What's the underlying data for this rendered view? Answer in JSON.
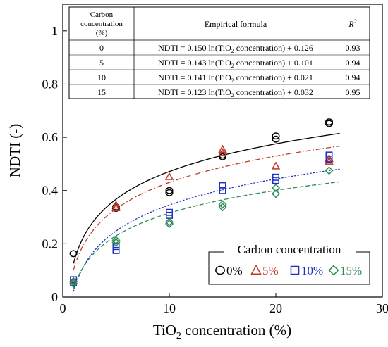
{
  "chart_data": {
    "type": "scatter",
    "xlabel": "TiO2 concentration (%)",
    "xlabel_main": "TiO",
    "xlabel_sub": "2",
    "xlabel_rest": " concentration (%)",
    "ylabel": "NDTI (-)",
    "xlim": [
      0,
      30
    ],
    "ylim": [
      0,
      1.1
    ],
    "x_ticks": [
      0,
      10,
      20,
      30
    ],
    "y_ticks": [
      0,
      0.2,
      0.4,
      0.6,
      0.8,
      1
    ],
    "y_tick_labels": [
      "0",
      "0.2",
      "0.4",
      "0.6",
      "0.8",
      "1"
    ],
    "legend": {
      "title": "Carbon concentration",
      "placement": "bottom-right",
      "entries": [
        "0%",
        "5%",
        "10%",
        "15%"
      ]
    },
    "series": [
      {
        "name": "0%",
        "marker": "circle",
        "color": "#000000",
        "line_style": "solid",
        "fit": {
          "a": 0.15,
          "b": 0.126
        },
        "points": [
          {
            "x": 1,
            "y": 0.163
          },
          {
            "x": 5,
            "y": 0.333
          },
          {
            "x": 5,
            "y": 0.338
          },
          {
            "x": 10,
            "y": 0.392
          },
          {
            "x": 10,
            "y": 0.4
          },
          {
            "x": 15,
            "y": 0.527
          },
          {
            "x": 15,
            "y": 0.533
          },
          {
            "x": 20,
            "y": 0.593
          },
          {
            "x": 20,
            "y": 0.605
          },
          {
            "x": 25,
            "y": 0.652
          },
          {
            "x": 25,
            "y": 0.658
          }
        ]
      },
      {
        "name": "5%",
        "marker": "triangle",
        "color": "#c0392b",
        "line_style": "dashdot",
        "fit": {
          "a": 0.143,
          "b": 0.101
        },
        "points": [
          {
            "x": 1,
            "y": 0.06
          },
          {
            "x": 5,
            "y": 0.335
          },
          {
            "x": 5,
            "y": 0.345
          },
          {
            "x": 10,
            "y": 0.452
          },
          {
            "x": 15,
            "y": 0.543
          },
          {
            "x": 15,
            "y": 0.555
          },
          {
            "x": 20,
            "y": 0.492
          },
          {
            "x": 25,
            "y": 0.51
          },
          {
            "x": 25,
            "y": 0.52
          }
        ]
      },
      {
        "name": "10%",
        "marker": "square",
        "color": "#1f2fbf",
        "line_style": "dotted",
        "fit": {
          "a": 0.141,
          "b": 0.021
        },
        "points": [
          {
            "x": 1,
            "y": 0.055
          },
          {
            "x": 1,
            "y": 0.065
          },
          {
            "x": 5,
            "y": 0.175
          },
          {
            "x": 5,
            "y": 0.19
          },
          {
            "x": 10,
            "y": 0.307
          },
          {
            "x": 10,
            "y": 0.318
          },
          {
            "x": 15,
            "y": 0.4
          },
          {
            "x": 15,
            "y": 0.418
          },
          {
            "x": 20,
            "y": 0.438
          },
          {
            "x": 20,
            "y": 0.45
          },
          {
            "x": 25,
            "y": 0.518
          },
          {
            "x": 25,
            "y": 0.533
          }
        ]
      },
      {
        "name": "15%",
        "marker": "diamond",
        "color": "#2e8b57",
        "line_style": "dashed",
        "fit": {
          "a": 0.123,
          "b": 0.032
        },
        "points": [
          {
            "x": 1,
            "y": 0.05
          },
          {
            "x": 1,
            "y": 0.058
          },
          {
            "x": 5,
            "y": 0.205
          },
          {
            "x": 5,
            "y": 0.213
          },
          {
            "x": 10,
            "y": 0.275
          },
          {
            "x": 10,
            "y": 0.282
          },
          {
            "x": 15,
            "y": 0.338
          },
          {
            "x": 15,
            "y": 0.348
          },
          {
            "x": 20,
            "y": 0.388
          },
          {
            "x": 20,
            "y": 0.41
          },
          {
            "x": 25,
            "y": 0.475
          }
        ]
      }
    ],
    "table": {
      "header_carbon": [
        "Carbon",
        "concentration",
        "(%)"
      ],
      "header_formula": "Empirical formula",
      "header_r2": "R",
      "header_r2_sup": "2",
      "rows": [
        {
          "carbon": "0",
          "formula": "NDTI = 0.150 ln(TiO",
          "formula_sub": "2",
          "formula_rest": " concentration) + 0.126",
          "r2": "0.93"
        },
        {
          "carbon": "5",
          "formula": "NDTI = 0.143 ln(TiO",
          "formula_sub": "2",
          "formula_rest": " concentration) + 0.101",
          "r2": "0.94"
        },
        {
          "carbon": "10",
          "formula": "NDTI = 0.141 ln(TiO",
          "formula_sub": "2",
          "formula_rest": " concentration) + 0.021",
          "r2": "0.94"
        },
        {
          "carbon": "15",
          "formula": "NDTI = 0.123 ln(TiO",
          "formula_sub": "2",
          "formula_rest": " concentration) + 0.032",
          "r2": "0.95"
        }
      ]
    }
  }
}
